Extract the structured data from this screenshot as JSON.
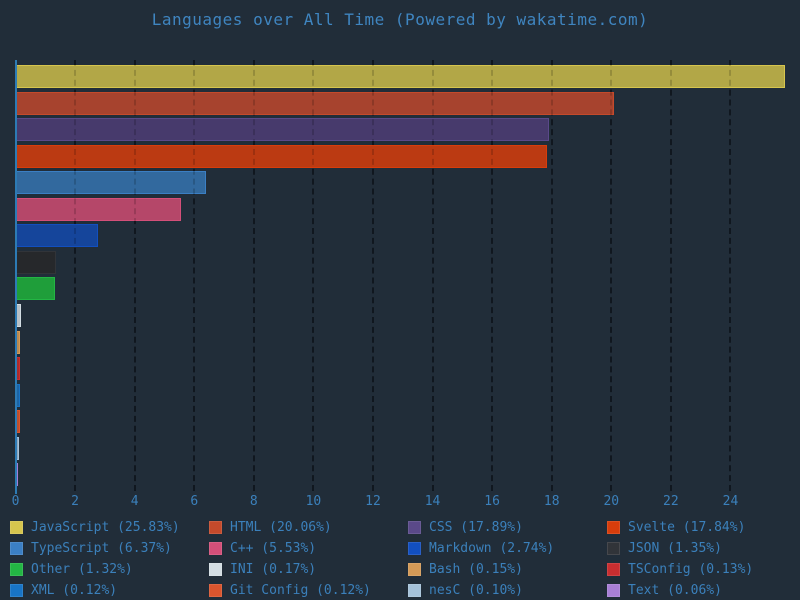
{
  "chart_data": {
    "type": "bar",
    "orientation": "horizontal",
    "title": "Languages over All Time (Powered by wakatime.com)",
    "xlabel": "",
    "ylabel": "",
    "unit": "percent",
    "x_ticks": [
      0,
      2,
      4,
      6,
      8,
      10,
      12,
      14,
      16,
      18,
      20,
      22,
      24
    ],
    "xlim": [
      0,
      26.3
    ],
    "grid": "vertical-dashed",
    "legend_position": "bottom",
    "legend_columns": 4,
    "languages": [
      {
        "name": "JavaScript",
        "value": 25.83,
        "label": "JavaScript (25.83%)",
        "fill": "#b2a747",
        "edge": "#d6c54e"
      },
      {
        "name": "HTML",
        "value": 20.06,
        "label": "HTML (20.06%)",
        "fill": "#a7432e",
        "edge": "#c54a2b"
      },
      {
        "name": "CSS",
        "value": 17.89,
        "label": "CSS (17.89%)",
        "fill": "#473a6c",
        "edge": "#5a4989"
      },
      {
        "name": "Svelte",
        "value": 17.84,
        "label": "Svelte (17.84%)",
        "fill": "#bb3a12",
        "edge": "#d83d0b"
      },
      {
        "name": "TypeScript",
        "value": 6.37,
        "label": "TypeScript (6.37%)",
        "fill": "#32699e",
        "edge": "#3b7fc4"
      },
      {
        "name": "C++",
        "value": 5.53,
        "label": "C++ (5.53%)",
        "fill": "#b54769",
        "edge": "#d44f79"
      },
      {
        "name": "Markdown",
        "value": 2.74,
        "label": "Markdown (2.74%)",
        "fill": "#15459b",
        "edge": "#124fc0"
      },
      {
        "name": "JSON",
        "value": 1.35,
        "label": "JSON (1.35%)",
        "fill": "#26282b",
        "edge": "#313439"
      },
      {
        "name": "Other",
        "value": 1.32,
        "label": "Other (1.32%)",
        "fill": "#1f9e3a",
        "edge": "#23b644"
      },
      {
        "name": "INI",
        "value": 0.17,
        "label": "INI (0.17%)",
        "fill": "#b8c1c7",
        "edge": "#d3dde3"
      },
      {
        "name": "Bash",
        "value": 0.15,
        "label": "Bash (0.15%)",
        "fill": "#b98a52",
        "edge": "#d49a57"
      },
      {
        "name": "TSConfig",
        "value": 0.13,
        "label": "TSConfig (0.13%)",
        "fill": "#ac2b2c",
        "edge": "#c92e30"
      },
      {
        "name": "XML",
        "value": 0.12,
        "label": "XML (0.12%)",
        "fill": "#1c64a5",
        "edge": "#1874c6"
      },
      {
        "name": "Git Config",
        "value": 0.12,
        "label": "Git Config (0.12%)",
        "fill": "#bd4f2e",
        "edge": "#da552e"
      },
      {
        "name": "nesC",
        "value": 0.1,
        "label": "nesC (0.10%)",
        "fill": "#90a8bd",
        "edge": "#a5c2da"
      },
      {
        "name": "Text",
        "value": 0.06,
        "label": "Text (0.06%)",
        "fill": "#9472b6",
        "edge": "#a87fd6"
      }
    ],
    "colors": {
      "background": "#212d39",
      "text": "#3b80bb",
      "title_text": "#3f85c0",
      "axis_line": "#2d7bb5",
      "gridline": "#141c26"
    }
  }
}
